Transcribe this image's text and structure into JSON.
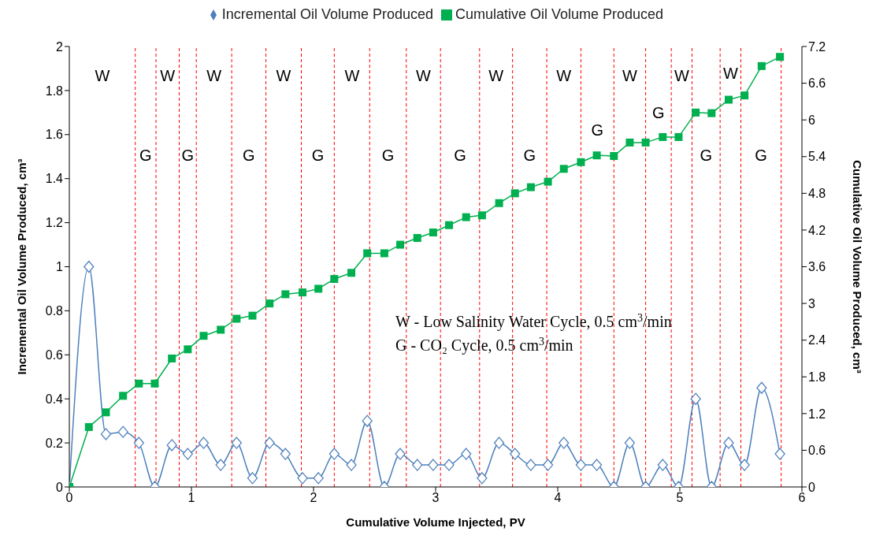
{
  "chart_data": {
    "type": "line",
    "xlabel": "Cumulative Volume Injected, PV",
    "ylabel": "Incremental Oil Volume Produced, cm³",
    "y2label": "Cumulative Oil Volume Produced, cm³",
    "x": [
      0,
      0.16,
      0.3,
      0.44,
      0.57,
      0.7,
      0.84,
      0.97,
      1.1,
      1.24,
      1.37,
      1.5,
      1.64,
      1.77,
      1.91,
      2.04,
      2.17,
      2.31,
      2.44,
      2.58,
      2.71,
      2.85,
      2.98,
      3.11,
      3.25,
      3.38,
      3.52,
      3.65,
      3.78,
      3.92,
      4.05,
      4.19,
      4.32,
      4.46,
      4.59,
      4.72,
      4.86,
      4.99,
      5.13,
      5.26,
      5.4,
      5.53,
      5.67,
      5.82
    ],
    "series": [
      {
        "name": "Incremental Oil Volume Produced",
        "color": "#4f81bd",
        "marker": "diamond",
        "values": [
          0,
          1.0,
          0.24,
          0.25,
          0.2,
          0,
          0.19,
          0.15,
          0.2,
          0.1,
          0.2,
          0.04,
          0.2,
          0.15,
          0.04,
          0.04,
          0.15,
          0.1,
          0.3,
          0,
          0.15,
          0.1,
          0.1,
          0.1,
          0.15,
          0.04,
          0.2,
          0.15,
          0.1,
          0.1,
          0.2,
          0.1,
          0.1,
          0,
          0.2,
          0,
          0.1,
          0,
          0.4,
          0,
          0.2,
          0.1,
          0.45,
          0.15
        ]
      },
      {
        "name": "Cumulative Oil Volume Produced",
        "color": "#00b050",
        "marker": "square",
        "axis": "y2",
        "values": [
          0,
          0.98,
          1.22,
          1.49,
          1.69,
          1.69,
          2.1,
          2.25,
          2.47,
          2.57,
          2.75,
          2.8,
          3.0,
          3.15,
          3.18,
          3.24,
          3.4,
          3.5,
          3.82,
          3.82,
          3.96,
          4.07,
          4.16,
          4.28,
          4.41,
          4.44,
          4.64,
          4.8,
          4.9,
          4.99,
          5.2,
          5.31,
          5.42,
          5.41,
          5.63,
          5.63,
          5.72,
          5.72,
          6.12,
          6.11,
          6.33,
          6.4,
          6.88,
          7.03
        ]
      }
    ],
    "xlim": [
      0,
      6
    ],
    "xticks": [
      0,
      1,
      2,
      3,
      4,
      5,
      6
    ],
    "ylim": [
      0,
      2
    ],
    "yticks": [
      0,
      0.2,
      0.4,
      0.6,
      0.8,
      1,
      1.2,
      1.4,
      1.6,
      1.8,
      2
    ],
    "y2lim": [
      0,
      7.2
    ],
    "y2ticks": [
      0,
      0.6,
      1.2,
      1.8,
      2.4,
      3,
      3.6,
      4.2,
      4.8,
      5.4,
      6,
      6.6,
      7.2
    ],
    "grid": false,
    "legend": "top",
    "ref_lines": [
      {
        "axis": "x",
        "value": 0.54,
        "color": "#ff0000",
        "line_style": "dashed"
      },
      {
        "axis": "x",
        "value": 0.71,
        "color": "#ff0000",
        "line_style": "dashed"
      },
      {
        "axis": "x",
        "value": 0.9,
        "color": "#ff0000",
        "line_style": "dashed"
      },
      {
        "axis": "x",
        "value": 1.04,
        "color": "#ff0000",
        "line_style": "dashed"
      },
      {
        "axis": "x",
        "value": 1.33,
        "color": "#ff0000",
        "line_style": "dashed"
      },
      {
        "axis": "x",
        "value": 1.61,
        "color": "#ff0000",
        "line_style": "dashed"
      },
      {
        "axis": "x",
        "value": 1.9,
        "color": "#ff0000",
        "line_style": "dashed"
      },
      {
        "axis": "x",
        "value": 2.17,
        "color": "#ff0000",
        "line_style": "dashed"
      },
      {
        "axis": "x",
        "value": 2.46,
        "color": "#ff0000",
        "line_style": "dashed"
      },
      {
        "axis": "x",
        "value": 2.76,
        "color": "#ff0000",
        "line_style": "dashed"
      },
      {
        "axis": "x",
        "value": 3.04,
        "color": "#ff0000",
        "line_style": "dashed"
      },
      {
        "axis": "x",
        "value": 3.36,
        "color": "#ff0000",
        "line_style": "dashed"
      },
      {
        "axis": "x",
        "value": 3.63,
        "color": "#ff0000",
        "line_style": "dashed"
      },
      {
        "axis": "x",
        "value": 3.91,
        "color": "#ff0000",
        "line_style": "dashed"
      },
      {
        "axis": "x",
        "value": 4.19,
        "color": "#ff0000",
        "line_style": "dashed"
      },
      {
        "axis": "x",
        "value": 4.46,
        "color": "#ff0000",
        "line_style": "dashed"
      },
      {
        "axis": "x",
        "value": 4.72,
        "color": "#ff0000",
        "line_style": "dashed"
      },
      {
        "axis": "x",
        "value": 4.93,
        "color": "#ff0000",
        "line_style": "dashed"
      },
      {
        "axis": "x",
        "value": 5.1,
        "color": "#ff0000",
        "line_style": "dashed"
      },
      {
        "axis": "x",
        "value": 5.33,
        "color": "#ff0000",
        "line_style": "dashed"
      },
      {
        "axis": "x",
        "value": 5.5,
        "color": "#ff0000",
        "line_style": "dashed"
      },
      {
        "axis": "x",
        "value": 5.83,
        "color": "#ff0000",
        "line_style": "dashed"
      }
    ],
    "annotations": [
      "W",
      "G",
      "W",
      "G",
      "W",
      "G",
      "W",
      "G",
      "W",
      "G",
      "W",
      "G",
      "W",
      "G",
      "W",
      "G",
      "W",
      "G",
      "W",
      "G",
      "W",
      "G",
      "W - Low Salinity Water Cycle, 0.5 cm$^{3}$/min",
      "G - CO₂ Cycle, 0.5 cm$^{3}$/min"
    ]
  }
}
